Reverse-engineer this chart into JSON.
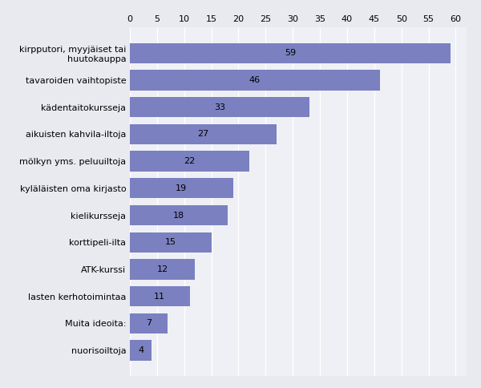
{
  "categories": [
    "nuorisoiltoja",
    "Muita ideoita:",
    "lasten kerhotoimintaa",
    "ATK-kurssi",
    "korttipeli-ilta",
    "kielikursseja",
    "kyläläisten oma kirjasto",
    "mölkyn yms. peluuiltoja",
    "aikuisten kahvila-iltoja",
    "kädentaitokursseja",
    "tavaroiden vaihtopiste",
    "kirpputori, myyjäiset tai\nhuutokauppa"
  ],
  "values": [
    4,
    7,
    11,
    12,
    15,
    18,
    19,
    22,
    27,
    33,
    46,
    59
  ],
  "bar_color": "#7b80c0",
  "plot_background": "#eef0f5",
  "figure_background": "#e8eaf0",
  "text_color": "#000000",
  "xlim": [
    0,
    62
  ],
  "xticks": [
    0,
    5,
    10,
    15,
    20,
    25,
    30,
    35,
    40,
    45,
    50,
    55,
    60
  ],
  "bar_height": 0.75,
  "figsize": [
    6.0,
    4.84
  ],
  "dpi": 100,
  "fontsize": 8.0,
  "label_fontsize": 8.0,
  "grid_color": "#ffffff"
}
